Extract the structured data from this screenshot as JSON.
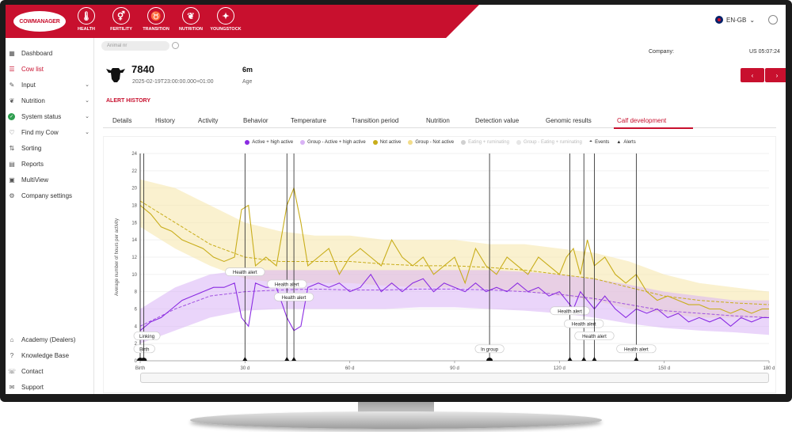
{
  "topnav": {
    "logo": "COWMANAGER",
    "items": [
      {
        "label": "HEALTH",
        "icon": "thermometer-icon"
      },
      {
        "label": "FERTILITY",
        "icon": "gender-icon"
      },
      {
        "label": "TRANSITION",
        "icon": "cow-head-icon"
      },
      {
        "label": "NUTRITION",
        "icon": "wheat-icon"
      },
      {
        "label": "YOUNGSTOCK",
        "icon": "calf-icon"
      }
    ],
    "language": "EN-GB"
  },
  "sidebar": {
    "items": [
      {
        "label": "Dashboard",
        "icon": "grid-icon",
        "chevron": false,
        "active": false
      },
      {
        "label": "Cow list",
        "icon": "list-icon",
        "chevron": false,
        "active": true
      },
      {
        "label": "Input",
        "icon": "edit-icon",
        "chevron": true,
        "active": false
      },
      {
        "label": "Nutrition",
        "icon": "wheat-icon",
        "chevron": true,
        "active": false
      },
      {
        "label": "System status",
        "icon": "check-circle-icon",
        "chevron": true,
        "active": false
      },
      {
        "label": "Find my Cow",
        "icon": "heart-icon",
        "chevron": true,
        "active": false
      },
      {
        "label": "Sorting",
        "icon": "sort-icon",
        "chevron": false,
        "active": false
      },
      {
        "label": "Reports",
        "icon": "report-icon",
        "chevron": false,
        "active": false
      },
      {
        "label": "MultiView",
        "icon": "multiview-icon",
        "chevron": false,
        "active": false
      },
      {
        "label": "Company settings",
        "icon": "gear-icon",
        "chevron": false,
        "active": false
      }
    ],
    "bottom_items": [
      {
        "label": "Academy (Dealers)",
        "icon": "academy-icon"
      },
      {
        "label": "Knowledge Base",
        "icon": "help-icon"
      },
      {
        "label": "Contact",
        "icon": "phone-icon"
      },
      {
        "label": "Support",
        "icon": "support-icon"
      }
    ]
  },
  "header": {
    "search_placeholder": "Animal nr",
    "company_label": "Company:",
    "clock": "US 05:07:24",
    "prev": "‹",
    "next": "›"
  },
  "animal": {
    "number": "7840",
    "date": "2025-02-19T23:00:00.000+01:00",
    "age_value": "6m",
    "age_label": "Age",
    "alert_history": "ALERT HISTORY"
  },
  "tabs": [
    "Details",
    "History",
    "Activity",
    "Behavior",
    "Temperature",
    "Transition period",
    "Nutrition",
    "Detection value",
    "Genomic results",
    "Calf development"
  ],
  "active_tab": 9,
  "colors": {
    "brand": "#c8102e",
    "active": "#8a2be2",
    "group_active": "#d9b3f5",
    "not_active": "#c8ad1a",
    "group_not_active": "#f6e6a8"
  },
  "chart_data": {
    "type": "line",
    "xlabel": "",
    "ylabel": "Average number of hours per activity",
    "ylim": [
      0,
      24
    ],
    "xlim": [
      0,
      180
    ],
    "yticks": [
      0,
      2,
      4,
      6,
      8,
      10,
      12,
      14,
      16,
      18,
      20,
      22,
      24
    ],
    "xticks": [
      {
        "value": 0,
        "label": "Birth"
      },
      {
        "value": 30,
        "label": "30 d"
      },
      {
        "value": 60,
        "label": "60 d"
      },
      {
        "value": 90,
        "label": "90 d"
      },
      {
        "value": 120,
        "label": "120 d"
      },
      {
        "value": 150,
        "label": "150 d"
      },
      {
        "value": 180,
        "label": "180 d"
      }
    ],
    "legend": [
      {
        "name": "Active + high active",
        "color": "#8a2be2",
        "faded": false
      },
      {
        "name": "Group - Active + high active",
        "color": "#d9b3f5",
        "faded": false
      },
      {
        "name": "Not active",
        "color": "#c8ad1a",
        "faded": false
      },
      {
        "name": "Group - Not active",
        "color": "#f2dc8a",
        "faded": false
      },
      {
        "name": "Eating + ruminating",
        "color": "#d0d0d0",
        "faded": true
      },
      {
        "name": "Group - Eating + ruminating",
        "color": "#e6e6e6",
        "faded": true
      },
      {
        "name": "Events",
        "color": "#111111",
        "faded": false
      },
      {
        "name": "Alerts",
        "color": "#111111",
        "faded": false
      }
    ],
    "series": [
      {
        "name": "Not active",
        "x": [
          0,
          3,
          6,
          9,
          12,
          15,
          18,
          21,
          24,
          27,
          29,
          31,
          33,
          36,
          39,
          42,
          44,
          46,
          48,
          51,
          54,
          57,
          60,
          63,
          66,
          69,
          72,
          75,
          78,
          81,
          84,
          87,
          90,
          93,
          96,
          99,
          102,
          105,
          108,
          111,
          114,
          117,
          120,
          122,
          124,
          126,
          128,
          130,
          133,
          136,
          139,
          142,
          145,
          148,
          151,
          154,
          157,
          160,
          163,
          166,
          169,
          172,
          175,
          178,
          180
        ],
        "values": [
          18,
          17,
          15.5,
          15,
          14,
          13.5,
          13,
          12,
          11.5,
          12,
          17.5,
          18,
          11,
          12,
          11,
          18,
          20,
          16,
          11,
          12,
          13,
          10,
          12,
          13,
          12,
          11,
          14,
          12,
          11,
          12,
          10,
          11,
          12,
          9,
          13,
          11,
          10,
          12,
          11,
          10,
          12,
          11,
          10,
          12,
          13,
          10,
          14,
          11,
          12,
          10,
          9,
          10,
          8,
          7,
          7.5,
          7,
          6.5,
          6.5,
          6,
          6,
          5.5,
          6,
          5.5,
          6,
          6
        ]
      },
      {
        "name": "Group - Not active",
        "x": [
          0,
          10,
          20,
          30,
          40,
          50,
          60,
          70,
          80,
          90,
          100,
          110,
          120,
          130,
          140,
          150,
          160,
          170,
          180
        ],
        "values": [
          18.5,
          16,
          13.5,
          12,
          11.5,
          11.5,
          11.5,
          11.2,
          11,
          11,
          10.8,
          10.5,
          10,
          9.5,
          8.5,
          7.5,
          7,
          6.7,
          6.5
        ]
      },
      {
        "name": "Active + high active",
        "x": [
          0,
          3,
          6,
          9,
          12,
          15,
          18,
          21,
          24,
          27,
          29,
          31,
          33,
          36,
          39,
          42,
          44,
          46,
          48,
          51,
          54,
          57,
          60,
          63,
          66,
          69,
          72,
          75,
          78,
          81,
          84,
          87,
          90,
          93,
          96,
          99,
          102,
          105,
          108,
          111,
          114,
          117,
          120,
          122,
          124,
          126,
          128,
          130,
          133,
          136,
          139,
          142,
          145,
          148,
          151,
          154,
          157,
          160,
          163,
          166,
          169,
          172,
          175,
          178,
          180
        ],
        "values": [
          3.5,
          4.5,
          5,
          6,
          7,
          7.5,
          8,
          8.5,
          8.5,
          9,
          5,
          4,
          9,
          8.5,
          8.5,
          5,
          3.5,
          4,
          8.5,
          9,
          8.5,
          9,
          8,
          8.5,
          10,
          8,
          9,
          8,
          9,
          9.5,
          8,
          9,
          8.5,
          8,
          9,
          8,
          8.5,
          8,
          9,
          8,
          8.5,
          7.5,
          8,
          7,
          6,
          8,
          7,
          6,
          7.5,
          6,
          5,
          6,
          5.5,
          6,
          5,
          5.5,
          4.5,
          5,
          4.5,
          5,
          4,
          5,
          4.5,
          5,
          5
        ]
      },
      {
        "name": "Group - Active + high active",
        "x": [
          0,
          10,
          20,
          30,
          40,
          50,
          60,
          70,
          80,
          90,
          100,
          110,
          120,
          130,
          140,
          150,
          160,
          170,
          180
        ],
        "values": [
          4,
          6,
          7.5,
          8,
          8.2,
          8.3,
          8.2,
          8.2,
          8.3,
          8.3,
          8.2,
          8,
          7.7,
          7.2,
          6.5,
          5.8,
          5.5,
          5.2,
          5
        ]
      }
    ],
    "band_not_active": {
      "x": [
        0,
        10,
        20,
        30,
        40,
        50,
        60,
        70,
        80,
        90,
        100,
        110,
        120,
        130,
        140,
        150,
        160,
        170,
        180
      ],
      "upper": [
        21,
        20,
        18,
        16,
        15,
        14.5,
        14.5,
        14,
        14,
        14,
        13.5,
        13.5,
        13,
        12.5,
        11.5,
        10,
        9,
        8.5,
        8
      ],
      "lower": [
        15.5,
        13,
        11,
        9.5,
        9,
        9,
        9,
        8.7,
        8.5,
        8.5,
        8.3,
        8,
        7.5,
        7,
        6,
        5.5,
        5,
        5,
        5
      ]
    },
    "band_active": {
      "x": [
        0,
        10,
        20,
        30,
        40,
        50,
        60,
        70,
        80,
        90,
        100,
        110,
        120,
        130,
        140,
        150,
        160,
        170,
        180
      ],
      "upper": [
        6,
        8.5,
        10,
        10.5,
        10.5,
        10.5,
        10.5,
        10.5,
        10.5,
        10.5,
        10.5,
        10.3,
        10,
        9.5,
        8.8,
        8,
        7.5,
        7,
        7
      ],
      "lower": [
        2,
        3.5,
        5,
        5.8,
        6,
        6,
        6,
        6,
        6.2,
        6.2,
        6,
        5.8,
        5.5,
        5,
        4.3,
        3.8,
        3.5,
        3.3,
        3
      ]
    },
    "markers": [
      {
        "x": 0,
        "kind": "event",
        "label": "Birth",
        "label_y": 1.3
      },
      {
        "x": 1,
        "kind": "event",
        "label": "Linking",
        "label_y": 2.8
      },
      {
        "x": 30,
        "kind": "alert",
        "label": "Health alert",
        "label_y": 10.2
      },
      {
        "x": 42,
        "kind": "alert",
        "label": "Health alert",
        "label_y": 8.8
      },
      {
        "x": 44,
        "kind": "alert",
        "label": "Health alert",
        "label_y": 7.3
      },
      {
        "x": 100,
        "kind": "event",
        "label": "In group",
        "label_y": 1.3
      },
      {
        "x": 123,
        "kind": "alert",
        "label": "Health alert",
        "label_y": 5.7
      },
      {
        "x": 127,
        "kind": "alert",
        "label": "Health alert",
        "label_y": 4.2
      },
      {
        "x": 130,
        "kind": "alert",
        "label": "Health alert",
        "label_y": 2.8
      },
      {
        "x": 142,
        "kind": "alert",
        "label": "Health alert",
        "label_y": 1.3
      }
    ]
  }
}
